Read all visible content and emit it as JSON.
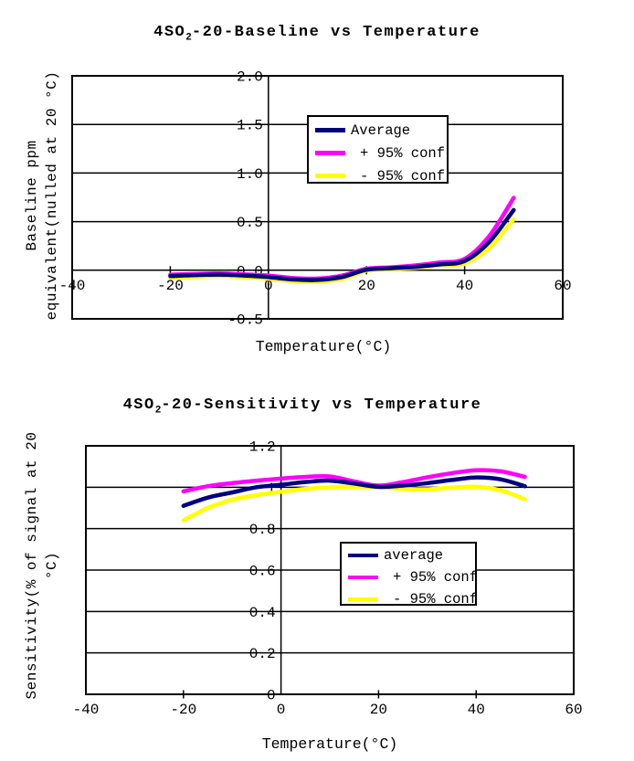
{
  "page": {
    "background": "#ffffff",
    "border_color": "#000000"
  },
  "chart_data": [
    {
      "type": "line",
      "title": "4SO2-20-Baseline vs Temperature",
      "title_parts": {
        "pre": "4SO",
        "sub": "2",
        "post": "-20-Baseline vs Temperature"
      },
      "xlabel": "Temperature(°C)",
      "ylabel": "Baseline ppm equivalent(nulled at 20 °C)",
      "ylabel_lines": [
        "Baseline ppm",
        "equivalent(nulled at 20 °C)"
      ],
      "xlim": [
        -40,
        60
      ],
      "ylim": [
        -0.5,
        2.0
      ],
      "grid": "horizontal",
      "legend_position": "upper-center-inside",
      "x_ticks": [
        {
          "value": -40,
          "label": "-40"
        },
        {
          "value": -20,
          "label": "-20"
        },
        {
          "value": 0,
          "label": "0"
        },
        {
          "value": 20,
          "label": "20"
        },
        {
          "value": 40,
          "label": "40"
        },
        {
          "value": 60,
          "label": "60"
        }
      ],
      "x_minor_tick_marks": [
        -20,
        20,
        40
      ],
      "y_ticks": [
        {
          "value": 2.0,
          "label": "2.0"
        },
        {
          "value": 1.5,
          "label": "1.5"
        },
        {
          "value": 1.0,
          "label": "1.0"
        },
        {
          "value": 0.5,
          "label": "0.5"
        },
        {
          "value": 0.0,
          "label": "0.0"
        },
        {
          "value": -0.5,
          "label": "-0.5"
        }
      ],
      "x": [
        -20,
        -15,
        -10,
        -5,
        0,
        5,
        10,
        15,
        20,
        25,
        30,
        35,
        40,
        45,
        50
      ],
      "series": [
        {
          "name": "Average",
          "color": "#000080",
          "values": [
            -0.06,
            -0.05,
            -0.045,
            -0.055,
            -0.07,
            -0.095,
            -0.1,
            -0.07,
            0.005,
            0.02,
            0.035,
            0.06,
            0.095,
            0.29,
            0.62
          ]
        },
        {
          "name": "+ 95% conf",
          "color": "#ff00ff",
          "values": [
            -0.045,
            -0.038,
            -0.033,
            -0.042,
            -0.055,
            -0.08,
            -0.085,
            -0.055,
            0.015,
            0.03,
            0.05,
            0.08,
            0.117,
            0.35,
            0.745
          ]
        },
        {
          "name": "- 95% conf",
          "color": "#ffff00",
          "values": [
            -0.078,
            -0.068,
            -0.06,
            -0.07,
            -0.088,
            -0.112,
            -0.118,
            -0.088,
            -0.005,
            0.01,
            0.025,
            0.05,
            0.07,
            0.23,
            0.525
          ]
        }
      ]
    },
    {
      "type": "line",
      "title": "4SO2-20-Sensitivity vs Temperature",
      "title_parts": {
        "pre": "4SO",
        "sub": "2",
        "post": "-20-Sensitivity vs Temperature"
      },
      "xlabel": "Temperature(°C)",
      "ylabel": "Sensitivity(% of signal at 20 °C)",
      "ylabel_lines": [
        "Sensitivity(% of signal at 20",
        "°C)"
      ],
      "xlim": [
        -40,
        60
      ],
      "ylim": [
        0,
        1.2
      ],
      "grid": "horizontal",
      "legend_position": "center-right-inside",
      "x_ticks": [
        {
          "value": -40,
          "label": "-40"
        },
        {
          "value": -20,
          "label": "-20"
        },
        {
          "value": 0,
          "label": "0"
        },
        {
          "value": 20,
          "label": "20"
        },
        {
          "value": 40,
          "label": "40"
        },
        {
          "value": 60,
          "label": "60"
        }
      ],
      "x_minor_tick_marks": [
        -20,
        20,
        40
      ],
      "y_ticks": [
        {
          "value": 1.2,
          "label": "1.2"
        },
        {
          "value": 1.0,
          "label": "1"
        },
        {
          "value": 0.8,
          "label": "0.8"
        },
        {
          "value": 0.6,
          "label": "0.6"
        },
        {
          "value": 0.4,
          "label": "0.4"
        },
        {
          "value": 0.2,
          "label": "0.2"
        },
        {
          "value": 0.0,
          "label": "0"
        }
      ],
      "x": [
        -20,
        -15,
        -10,
        -5,
        0,
        5,
        10,
        15,
        20,
        25,
        30,
        35,
        40,
        45,
        50
      ],
      "series": [
        {
          "name": "average",
          "color": "#000080",
          "values": [
            0.91,
            0.95,
            0.975,
            1.0,
            1.012,
            1.025,
            1.032,
            1.018,
            1.002,
            1.008,
            1.02,
            1.035,
            1.047,
            1.038,
            1.005
          ]
        },
        {
          "name": "+ 95% conf",
          "color": "#ff00ff",
          "values": [
            0.98,
            1.005,
            1.02,
            1.032,
            1.042,
            1.05,
            1.052,
            1.028,
            1.008,
            1.025,
            1.048,
            1.068,
            1.082,
            1.077,
            1.05
          ]
        },
        {
          "name": "- 95% conf",
          "color": "#ffff00",
          "values": [
            0.84,
            0.9,
            0.94,
            0.962,
            0.978,
            0.992,
            1.0,
            1.002,
            1.0,
            0.992,
            0.99,
            0.998,
            1.002,
            0.985,
            0.942
          ]
        }
      ]
    }
  ]
}
